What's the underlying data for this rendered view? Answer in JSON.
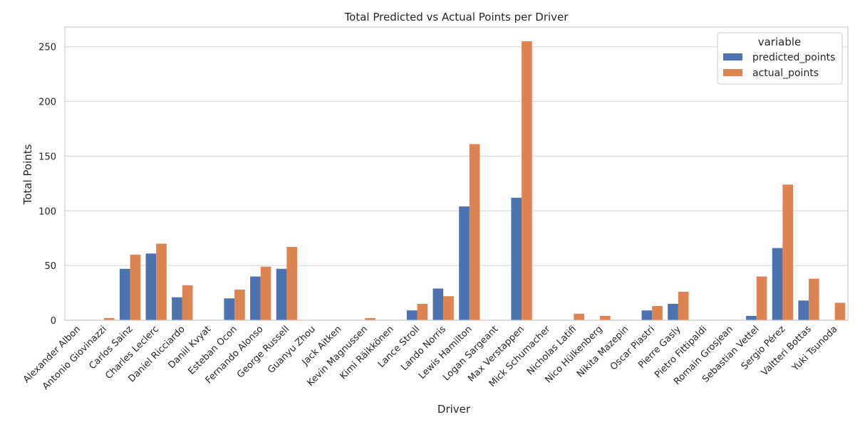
{
  "chart_data": {
    "type": "bar",
    "title": "Total Predicted vs Actual Points per Driver",
    "xlabel": "Driver",
    "ylabel": "Total Points",
    "ylim": [
      0,
      268
    ],
    "yticks": [
      0,
      50,
      100,
      150,
      200,
      250
    ],
    "grid": "horizontal",
    "legend_placement": "top-right",
    "legend_title": "variable",
    "categories": [
      "Alexander Albon",
      "Antonio Giovinazzi",
      "Carlos Sainz",
      "Charles Leclerc",
      "Daniel Ricciardo",
      "Daniil Kvyat",
      "Esteban Ocon",
      "Fernando Alonso",
      "George Russell",
      "Guanyu Zhou",
      "Jack Aitken",
      "Kevin Magnussen",
      "Kimi Räikkönen",
      "Lance Stroll",
      "Lando Norris",
      "Lewis Hamilton",
      "Logan Sargeant",
      "Max Verstappen",
      "Mick Schumacher",
      "Nicholas Latifi",
      "Nico Hülkenberg",
      "Nikita Mazepin",
      "Oscar Piastri",
      "Pierre Gasly",
      "Pietro Fittipaldi",
      "Romain Grosjean",
      "Sebastian Vettel",
      "Sergio Pérez",
      "Valtteri Bottas",
      "Yuki Tsunoda"
    ],
    "series": [
      {
        "name": "predicted_points",
        "color": "#4c72b0",
        "values": [
          0,
          0,
          47,
          61,
          21,
          0,
          20,
          40,
          47,
          0,
          0,
          0,
          0,
          9,
          29,
          104,
          0,
          112,
          0,
          0,
          0,
          0,
          9,
          15,
          0,
          0,
          4,
          66,
          18,
          0
        ]
      },
      {
        "name": "actual_points",
        "color": "#dd8452",
        "values": [
          0,
          2,
          60,
          70,
          32,
          0,
          28,
          49,
          67,
          0,
          0,
          2,
          0,
          15,
          22,
          161,
          0,
          255,
          0,
          6,
          4,
          0,
          13,
          26,
          0,
          0,
          40,
          124,
          38,
          16
        ]
      }
    ]
  }
}
